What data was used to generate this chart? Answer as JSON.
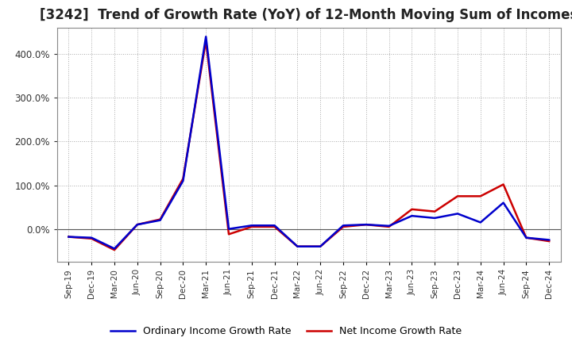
{
  "title": "[3242]  Trend of Growth Rate (YoY) of 12-Month Moving Sum of Incomes",
  "title_fontsize": 12,
  "title_color": "#222222",
  "background_color": "#ffffff",
  "plot_bg_color": "#ffffff",
  "grid_color": "#aaaaaa",
  "x_labels": [
    "Sep-19",
    "Dec-19",
    "Mar-20",
    "Jun-20",
    "Sep-20",
    "Dec-20",
    "Mar-21",
    "Jun-21",
    "Sep-21",
    "Dec-21",
    "Mar-22",
    "Jun-22",
    "Sep-22",
    "Dec-22",
    "Mar-23",
    "Jun-23",
    "Sep-23",
    "Dec-23",
    "Mar-24",
    "Jun-24",
    "Sep-24",
    "Dec-24"
  ],
  "ordinary_income": [
    -18,
    -20,
    -45,
    10,
    20,
    110,
    440,
    0,
    8,
    8,
    -40,
    -40,
    8,
    10,
    7,
    30,
    25,
    35,
    15,
    60,
    -20,
    -25
  ],
  "net_income": [
    -18,
    -22,
    -48,
    10,
    22,
    115,
    430,
    -12,
    5,
    5,
    -40,
    -40,
    5,
    10,
    5,
    45,
    40,
    75,
    75,
    102,
    -20,
    -28
  ],
  "ordinary_color": "#0000cc",
  "net_color": "#cc0000",
  "legend_ordinary": "Ordinary Income Growth Rate",
  "legend_net": "Net Income Growth Rate",
  "line_width": 1.8,
  "yticks": [
    0,
    100,
    200,
    300,
    400
  ],
  "ylim_min": -75,
  "ylim_max": 460,
  "tick_fontsize": 8.5,
  "xlabel_fontsize": 7.5
}
